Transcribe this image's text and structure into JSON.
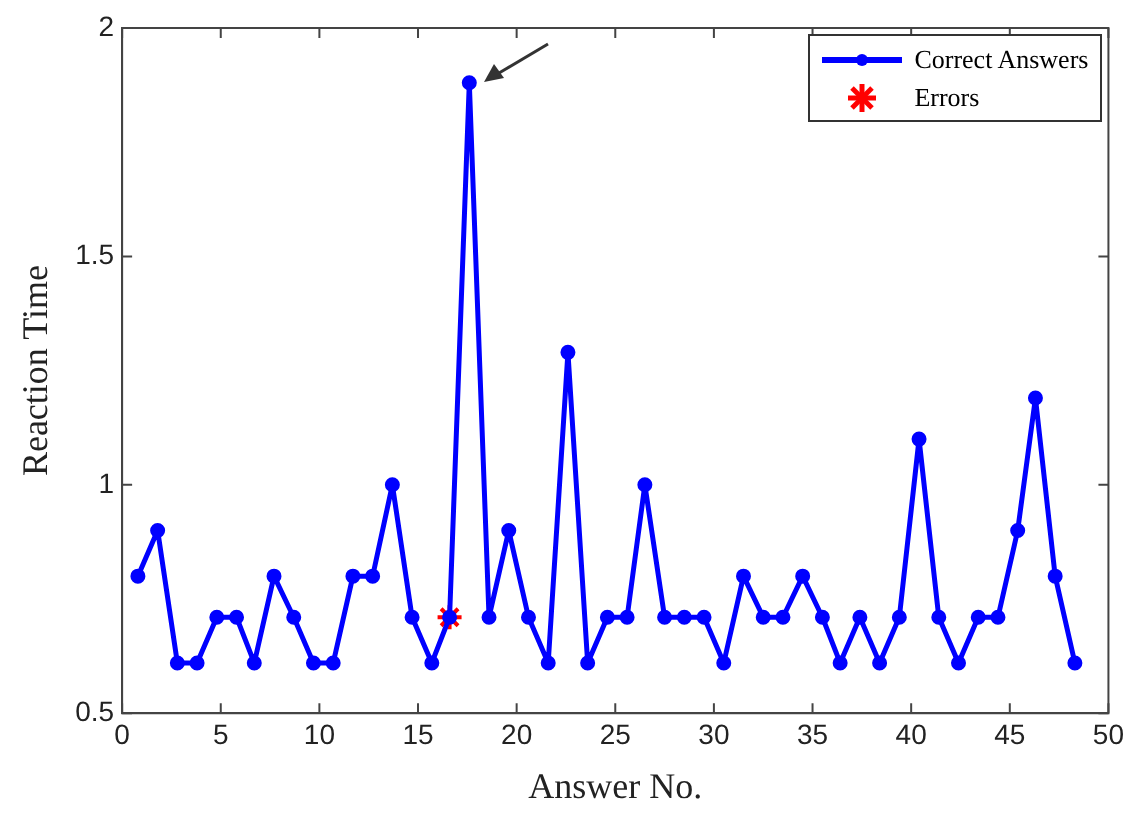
{
  "chart_data": {
    "type": "line",
    "xlabel": "Answer No.",
    "ylabel": "Reaction Time",
    "xlim": [
      0,
      50
    ],
    "xticks": [
      0,
      5,
      10,
      15,
      20,
      25,
      30,
      35,
      40,
      45,
      50
    ],
    "ylim": [
      0.5,
      2
    ],
    "yticks": [
      0.5,
      1,
      1.5,
      2
    ],
    "grid": false,
    "legend": "top right",
    "series": [
      {
        "name": "Correct Answers",
        "marker": "circle",
        "line_style": "solid",
        "color": "#0000ff",
        "x": [
          0.8,
          1.8,
          2.8,
          3.8,
          4.8,
          5.8,
          6.7,
          7.7,
          8.7,
          9.7,
          10.7,
          11.7,
          12.7,
          13.7,
          14.7,
          15.7,
          16.6,
          17.6,
          18.6,
          19.6,
          20.6,
          21.6,
          22.6,
          23.6,
          24.6,
          25.6,
          26.5,
          27.5,
          28.5,
          29.5,
          30.5,
          31.5,
          32.5,
          33.5,
          34.5,
          35.5,
          36.4,
          37.4,
          38.4,
          39.4,
          40.4,
          41.4,
          42.4,
          43.4,
          44.4,
          45.4,
          46.3,
          47.3,
          48.3
        ],
        "values": [
          0.8,
          0.9,
          0.61,
          0.61,
          0.71,
          0.71,
          0.61,
          0.8,
          0.71,
          0.61,
          0.61,
          0.8,
          0.8,
          1.0,
          0.71,
          0.61,
          0.71,
          1.88,
          0.71,
          0.9,
          0.71,
          0.61,
          1.29,
          0.61,
          0.71,
          0.71,
          1.0,
          0.71,
          0.71,
          0.71,
          0.61,
          0.8,
          0.71,
          0.71,
          0.8,
          0.71,
          0.61,
          0.71,
          0.61,
          0.71,
          1.1,
          0.71,
          0.61,
          0.71,
          0.71,
          0.9,
          1.19,
          0.8,
          0.61
        ]
      },
      {
        "name": "Errors",
        "type": "scatter",
        "marker": "cross",
        "color": "#ff0000",
        "x": [
          16.6
        ],
        "values": [
          0.71
        ]
      }
    ]
  }
}
